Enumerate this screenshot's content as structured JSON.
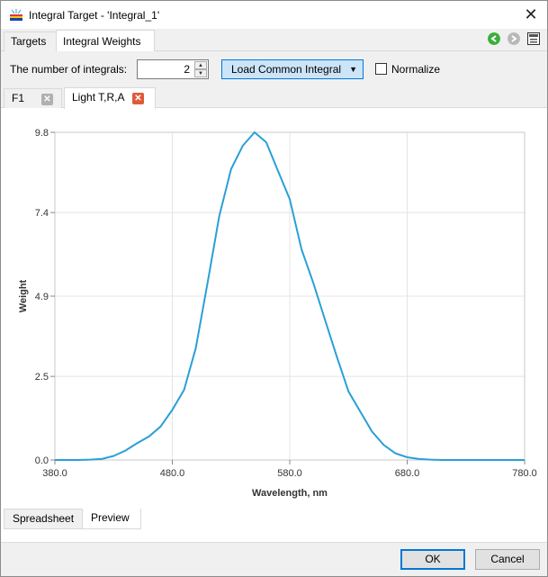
{
  "window": {
    "title": "Integral Target - 'Integral_1'",
    "close_glyph": "✕"
  },
  "tabs": [
    {
      "label": "Targets",
      "active": false
    },
    {
      "label": "Integral Weights",
      "active": true
    }
  ],
  "nav": {
    "back_icon": "arrow-left-icon",
    "forward_icon": "arrow-right-icon",
    "panel_icon": "panel-icon"
  },
  "controls": {
    "num_integrals_label": "The number of integrals:",
    "num_integrals_value": "2",
    "load_button_label": "Load Common Integral",
    "normalize_label": "Normalize",
    "normalize_checked": false
  },
  "subtabs": [
    {
      "label": "F1",
      "active": false
    },
    {
      "label": "Light T,R,A",
      "active": true
    }
  ],
  "chart_data": {
    "type": "line",
    "xlabel": "Wavelength, nm",
    "ylabel": "Weight",
    "xlim": [
      380,
      780
    ],
    "ylim": [
      0,
      9.8
    ],
    "xticks": [
      "380.0",
      "480.0",
      "580.0",
      "680.0",
      "780.0"
    ],
    "yticks": [
      "0.0",
      "2.5",
      "4.9",
      "7.4",
      "9.8"
    ],
    "grid": true,
    "line_color": "#2a9fd8",
    "x": [
      380,
      390,
      400,
      410,
      420,
      430,
      440,
      450,
      460,
      470,
      480,
      490,
      500,
      510,
      520,
      530,
      540,
      550,
      560,
      570,
      580,
      590,
      600,
      610,
      620,
      630,
      640,
      650,
      660,
      670,
      680,
      690,
      700,
      710,
      720,
      730,
      740,
      750,
      760,
      770,
      780
    ],
    "y": [
      0.0,
      0.0,
      0.0,
      0.01,
      0.03,
      0.12,
      0.28,
      0.5,
      0.7,
      1.0,
      1.5,
      2.1,
      3.35,
      5.3,
      7.3,
      8.7,
      9.4,
      9.8,
      9.5,
      8.65,
      7.8,
      6.3,
      5.3,
      4.2,
      3.1,
      2.05,
      1.45,
      0.85,
      0.45,
      0.2,
      0.08,
      0.03,
      0.01,
      0.0,
      0.0,
      0.0,
      0.0,
      0.0,
      0.0,
      0.0,
      0.0
    ]
  },
  "bottom_tabs": [
    {
      "label": "Spreadsheet",
      "active": false
    },
    {
      "label": "Preview",
      "active": true
    }
  ],
  "footer": {
    "ok_label": "OK",
    "cancel_label": "Cancel"
  },
  "colors": {
    "accent": "#0078d7",
    "close_active": "#e05a3a",
    "close_inactive": "#b0b0b0",
    "nav_green": "#3cae3c"
  }
}
